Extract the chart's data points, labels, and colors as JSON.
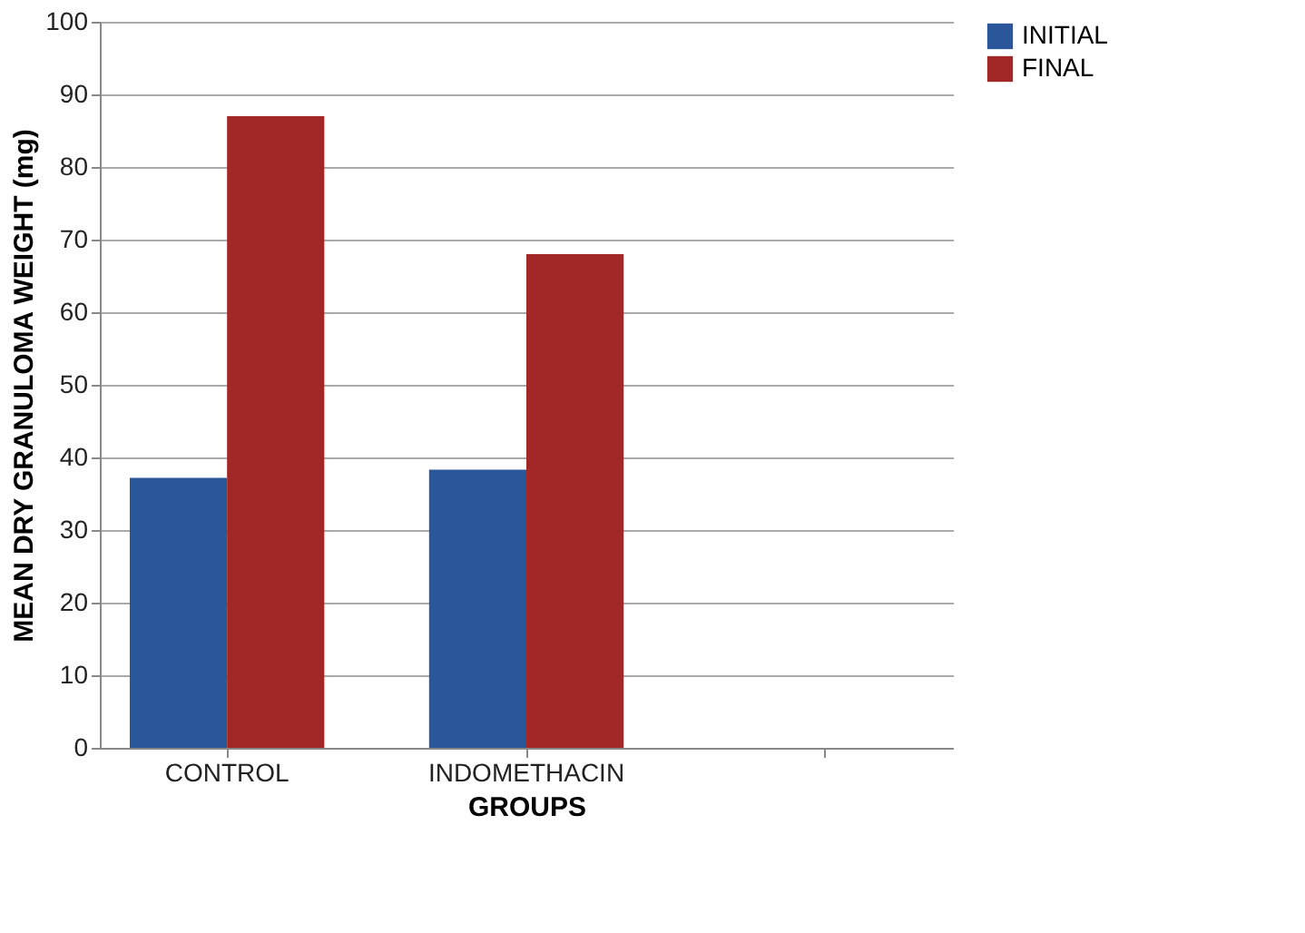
{
  "chart_data": {
    "type": "bar",
    "xlabel": "GROUPS",
    "ylabel": "MEAN DRY GRANULOMA WEIGHT (mg)",
    "categories": [
      "CONTROL",
      "INDOMETHACIN",
      null
    ],
    "series": [
      {
        "name": "INITIAL",
        "color": "#2a579a",
        "values": [
          37.2,
          38.3,
          null
        ]
      },
      {
        "name": "FINAL",
        "color": "#a12826",
        "values": [
          87.0,
          68.0,
          null
        ]
      }
    ],
    "ylim": [
      0,
      100
    ],
    "yticks": [
      0,
      10,
      20,
      30,
      40,
      50,
      60,
      70,
      80,
      90,
      100
    ],
    "grid": "y",
    "legend": "right"
  }
}
